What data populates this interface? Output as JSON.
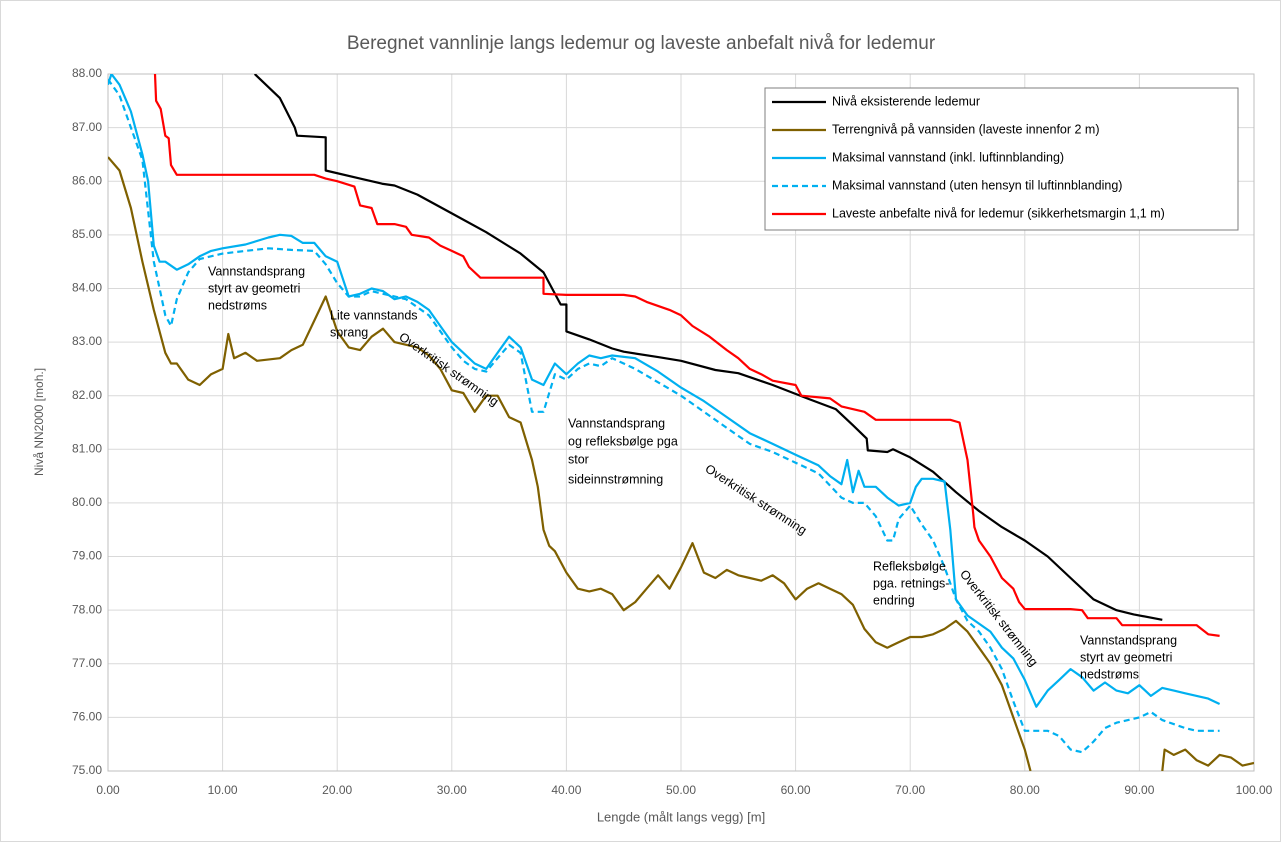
{
  "chart_data": {
    "type": "line",
    "title": "Beregnet vannlinje langs ledemur og laveste anbefalt nivå for ledemur",
    "x_label": "Lengde (målt langs vegg) [m]",
    "y_label": "Nivå NN2000 [moh.]",
    "xlim": [
      0,
      100
    ],
    "ylim": [
      75,
      88
    ],
    "xticks": [
      {
        "value": 0,
        "label": "0.00"
      },
      {
        "value": 10,
        "label": "10.00"
      },
      {
        "value": 20,
        "label": "20.00"
      },
      {
        "value": 30,
        "label": "30.00"
      },
      {
        "value": 40,
        "label": "40.00"
      },
      {
        "value": 50,
        "label": "50.00"
      },
      {
        "value": 60,
        "label": "60.00"
      },
      {
        "value": 70,
        "label": "70.00"
      },
      {
        "value": 80,
        "label": "80.00"
      },
      {
        "value": 90,
        "label": "90.00"
      },
      {
        "value": 100,
        "label": "100.00"
      }
    ],
    "yticks": [
      {
        "value": 75,
        "label": "75.00"
      },
      {
        "value": 76,
        "label": "76.00"
      },
      {
        "value": 77,
        "label": "77.00"
      },
      {
        "value": 78,
        "label": "78.00"
      },
      {
        "value": 79,
        "label": "79.00"
      },
      {
        "value": 80,
        "label": "80.00"
      },
      {
        "value": 81,
        "label": "81.00"
      },
      {
        "value": 82,
        "label": "82.00"
      },
      {
        "value": 83,
        "label": "83.00"
      },
      {
        "value": 84,
        "label": "84.00"
      },
      {
        "value": 85,
        "label": "85.00"
      },
      {
        "value": 86,
        "label": "86.00"
      },
      {
        "value": 87,
        "label": "87.00"
      },
      {
        "value": 88,
        "label": "88.00"
      }
    ],
    "grid": true,
    "legend": "top-right",
    "series": [
      {
        "name": "Nivå eksisterende ledemur",
        "color": "#000000",
        "dash": false,
        "x": [
          12.8,
          15,
          16.3,
          16.5,
          19,
          19,
          22,
          24,
          25,
          27,
          30,
          33,
          36,
          38,
          39.5,
          40,
          40,
          42,
          44,
          45,
          48,
          50,
          53,
          55,
          58,
          61,
          63.5,
          65,
          66.2,
          66.3,
          68,
          68.5,
          70,
          72,
          74,
          76,
          78,
          80,
          82,
          84,
          86,
          88,
          89.5,
          92
        ],
        "values": [
          88,
          87.55,
          87,
          86.85,
          86.82,
          86.2,
          86.05,
          85.95,
          85.92,
          85.75,
          85.4,
          85.05,
          84.65,
          84.3,
          83.7,
          83.7,
          83.2,
          83.05,
          82.88,
          82.82,
          82.72,
          82.65,
          82.48,
          82.42,
          82.2,
          81.95,
          81.75,
          81.45,
          81.2,
          80.98,
          80.95,
          81,
          80.85,
          80.58,
          80.2,
          79.85,
          79.55,
          79.3,
          79,
          78.6,
          78.2,
          78,
          77.92,
          77.82
        ]
      },
      {
        "name": "Terrengnivå på vannsiden (laveste innenfor 2 m)",
        "color": "#7f6000",
        "dash": false,
        "x": [
          0,
          1,
          2,
          3,
          4,
          5,
          5.5,
          6,
          7,
          8,
          9,
          10,
          10.5,
          11,
          12,
          13,
          15,
          16,
          17,
          18,
          19,
          20,
          21,
          22,
          23,
          24,
          25,
          27,
          28,
          29,
          30,
          31,
          32,
          33,
          34,
          35,
          36,
          37,
          37.5,
          38,
          38.5,
          39,
          40,
          41,
          42,
          43,
          44,
          45,
          46,
          47,
          48,
          49,
          50,
          51,
          52,
          53,
          54,
          55,
          56,
          57,
          58,
          59,
          60,
          61,
          62,
          63,
          64,
          65,
          66,
          67,
          68,
          69,
          70,
          71,
          72,
          73,
          74,
          75,
          76,
          77,
          78,
          79,
          80,
          80.5,
          null,
          92,
          92.2,
          93,
          94,
          95,
          96,
          97,
          98,
          99,
          100
        ],
        "values": [
          86.45,
          86.2,
          85.5,
          84.5,
          83.6,
          82.8,
          82.6,
          82.6,
          82.3,
          82.2,
          82.4,
          82.5,
          83.15,
          82.7,
          82.8,
          82.65,
          82.7,
          82.85,
          82.95,
          83.4,
          83.85,
          83.2,
          82.9,
          82.85,
          83.1,
          83.25,
          83,
          82.9,
          82.75,
          82.5,
          82.1,
          82.05,
          81.7,
          82,
          82,
          81.6,
          81.5,
          80.8,
          80.3,
          79.5,
          79.2,
          79.1,
          78.7,
          78.4,
          78.35,
          78.4,
          78.3,
          78,
          78.15,
          78.4,
          78.65,
          78.4,
          78.8,
          79.25,
          78.7,
          78.6,
          78.75,
          78.65,
          78.6,
          78.55,
          78.65,
          78.5,
          78.2,
          78.4,
          78.5,
          78.4,
          78.3,
          78.1,
          77.65,
          77.4,
          77.3,
          77.4,
          77.5,
          77.5,
          77.55,
          77.65,
          77.8,
          77.6,
          77.3,
          77,
          76.6,
          76,
          75.4,
          75,
          null,
          75,
          75.4,
          75.3,
          75.4,
          75.2,
          75.1,
          75.3,
          75.25,
          75.1,
          75.15
        ]
      },
      {
        "name": "Maksimal vannstand (inkl. luftinnblanding)",
        "color": "#00b0f0",
        "dash": false,
        "x": [
          0,
          0.3,
          1,
          2,
          3,
          3.5,
          4,
          4.5,
          5,
          6,
          7,
          8,
          9,
          10,
          12,
          14,
          15,
          16,
          17,
          18,
          19,
          20,
          21,
          22,
          23,
          24,
          25,
          26,
          27,
          28,
          29,
          30,
          31,
          32,
          33,
          34,
          35,
          36,
          37,
          38,
          39,
          40,
          41,
          42,
          43,
          44,
          46,
          48,
          50,
          52,
          54,
          56,
          58,
          60,
          62,
          63,
          64,
          64.5,
          65,
          65.5,
          66,
          67,
          68,
          69,
          70,
          70.5,
          71,
          72,
          73,
          73.5,
          74,
          75,
          76,
          77,
          78,
          79,
          80,
          81,
          82,
          83,
          84,
          85,
          86,
          87,
          88,
          89,
          90,
          91,
          92,
          93,
          94,
          95,
          96,
          97
        ],
        "values": [
          87.8,
          88,
          87.8,
          87.3,
          86.5,
          86,
          84.8,
          84.5,
          84.5,
          84.35,
          84.45,
          84.6,
          84.7,
          84.75,
          84.82,
          84.95,
          85,
          84.98,
          84.85,
          84.85,
          84.6,
          84.5,
          83.85,
          83.9,
          84,
          83.95,
          83.8,
          83.85,
          83.75,
          83.6,
          83.3,
          83,
          82.8,
          82.6,
          82.5,
          82.8,
          83.1,
          82.9,
          82.3,
          82.2,
          82.6,
          82.4,
          82.6,
          82.75,
          82.7,
          82.75,
          82.7,
          82.45,
          82.15,
          81.9,
          81.6,
          81.3,
          81.1,
          80.9,
          80.7,
          80.5,
          80.35,
          80.8,
          80.2,
          80.6,
          80.3,
          80.3,
          80.1,
          79.95,
          80,
          80.3,
          80.45,
          80.45,
          80.4,
          79.5,
          78.2,
          77.9,
          77.75,
          77.6,
          77.3,
          77.1,
          76.7,
          76.2,
          76.5,
          76.7,
          76.9,
          76.75,
          76.5,
          76.65,
          76.5,
          76.45,
          76.6,
          76.4,
          76.55,
          76.5,
          76.45,
          76.4,
          76.35,
          76.25
        ]
      },
      {
        "name": "Maksimal vannstand (uten hensyn til luftinnblanding)",
        "color": "#00b0f0",
        "dash": true,
        "x": [
          0,
          1,
          2,
          3,
          4,
          4.5,
          5,
          5.5,
          6,
          7,
          8,
          10,
          12,
          14,
          16,
          18,
          19,
          20,
          21,
          22,
          23,
          24,
          26,
          28,
          30,
          31,
          32,
          33,
          34,
          35,
          36,
          37,
          38,
          39,
          40,
          41,
          42,
          43,
          44,
          45,
          46,
          48,
          50,
          52,
          54,
          56,
          58,
          60,
          62,
          64,
          65,
          66,
          67,
          68,
          68.5,
          69,
          70,
          71,
          72,
          73,
          74,
          75,
          76,
          77,
          78,
          79,
          80,
          82,
          83,
          84,
          85,
          86,
          87,
          88,
          90,
          91,
          92,
          94,
          95,
          97
        ],
        "values": [
          87.9,
          87.6,
          87,
          86.4,
          84.5,
          84,
          83.5,
          83.3,
          83.8,
          84.3,
          84.55,
          84.65,
          84.7,
          84.75,
          84.72,
          84.7,
          84.45,
          84.1,
          83.85,
          83.85,
          83.95,
          83.9,
          83.8,
          83.5,
          82.9,
          82.65,
          82.5,
          82.45,
          82.7,
          82.95,
          82.8,
          81.7,
          81.7,
          82.4,
          82.3,
          82.5,
          82.6,
          82.55,
          82.7,
          82.6,
          82.5,
          82.25,
          82,
          81.7,
          81.4,
          81.1,
          80.95,
          80.75,
          80.55,
          80.1,
          80,
          80,
          79.75,
          79.3,
          79.3,
          79.7,
          79.95,
          79.6,
          79.3,
          78.8,
          78.2,
          77.8,
          77.6,
          77.3,
          76.9,
          76.3,
          75.75,
          75.75,
          75.65,
          75.4,
          75.35,
          75.55,
          75.8,
          75.9,
          76,
          76.1,
          75.95,
          75.8,
          75.75,
          75.75
        ]
      },
      {
        "name": "Laveste anbefalte nivå for ledemur (sikkerhetsmargin 1,1 m)",
        "color": "#ff0000",
        "dash": false,
        "x": [
          4.1,
          4.2,
          4.6,
          5,
          5.3,
          5.5,
          6,
          10,
          15,
          18,
          19,
          20,
          21.5,
          22,
          23,
          23.5,
          25,
          26,
          26.5,
          28,
          29,
          30,
          31,
          31.5,
          32.5,
          35,
          38,
          38,
          40,
          45,
          46,
          47,
          49,
          50,
          51,
          52.5,
          54,
          55,
          56,
          57,
          58,
          60,
          60.5,
          63,
          64,
          66,
          67,
          70,
          73.5,
          74.3,
          75,
          75.5,
          75.6,
          76,
          77,
          78,
          79,
          79.5,
          80,
          84,
          85,
          85.5,
          88,
          88.5,
          95,
          96,
          97
        ],
        "values": [
          88,
          87.5,
          87.35,
          86.85,
          86.8,
          86.3,
          86.12,
          86.12,
          86.12,
          86.12,
          86.05,
          86,
          85.9,
          85.55,
          85.5,
          85.2,
          85.2,
          85.15,
          85,
          84.95,
          84.8,
          84.7,
          84.6,
          84.4,
          84.2,
          84.2,
          84.2,
          83.9,
          83.88,
          83.88,
          83.85,
          83.75,
          83.6,
          83.5,
          83.3,
          83.1,
          82.85,
          82.7,
          82.5,
          82.4,
          82.28,
          82.2,
          82,
          81.95,
          81.8,
          81.7,
          81.55,
          81.55,
          81.55,
          81.5,
          80.8,
          79.8,
          79.55,
          79.3,
          79,
          78.6,
          78.4,
          78.15,
          78.02,
          78.02,
          78,
          77.85,
          77.85,
          77.72,
          77.72,
          77.55,
          77.52
        ]
      }
    ],
    "annotations": [
      [
        "Vannstandsprang",
        "styrt av geometri",
        "nedstrøms"
      ],
      [
        "Lite vannstands",
        "sprang"
      ],
      [
        "Overkritisk strømning"
      ],
      [
        "Vannstandsprang",
        "og refleksbølge pga",
        "stor",
        "sideinnstrømning"
      ],
      [
        "Overkritisk strømning"
      ],
      [
        "Refleksbølge",
        "pga. retnings-",
        "endring"
      ],
      [
        "Overkritisk strømning"
      ],
      [
        "Vannstandsprang",
        "styrt av geometri",
        "nedstrøms"
      ]
    ]
  }
}
